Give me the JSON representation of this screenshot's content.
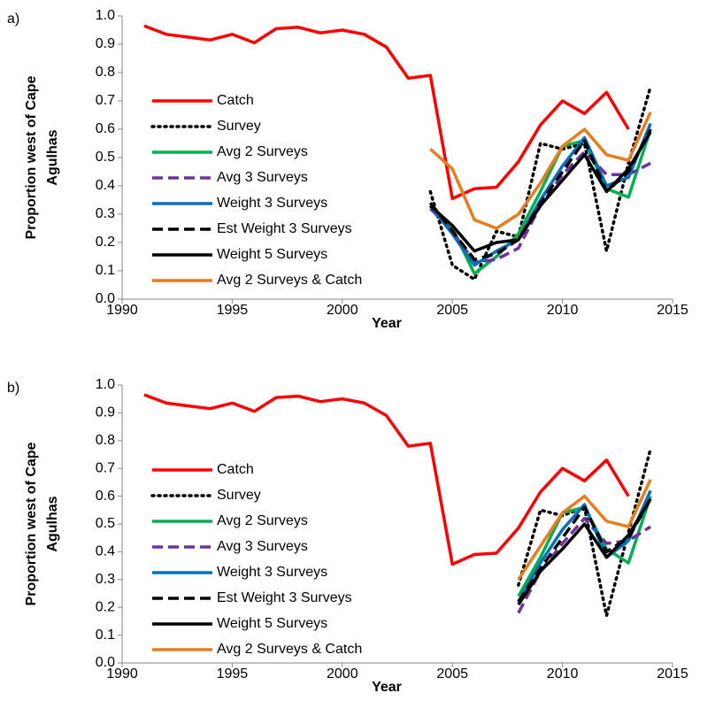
{
  "chart_data": [
    {
      "type": "line",
      "panel_label": "a)",
      "y_label": [
        "Proportion west of Cape",
        "Agulhas"
      ],
      "x_label": "Year",
      "x": [
        1991,
        1992,
        1993,
        1994,
        1995,
        1996,
        1997,
        1998,
        1999,
        2000,
        2001,
        2002,
        2003,
        2004,
        2005,
        2006,
        2007,
        2008,
        2009,
        2010,
        2011,
        2012,
        2013,
        2014
      ],
      "xlim": [
        1990,
        2015
      ],
      "xticks": [
        1990,
        1995,
        2000,
        2005,
        2010,
        2015
      ],
      "ylim": [
        0,
        1
      ],
      "yticks": [
        {
          "value": 0,
          "label": "0.0"
        },
        {
          "value": 0.1,
          "label": "0.1"
        },
        {
          "value": 0.2,
          "label": "0.2"
        },
        {
          "value": 0.3,
          "label": "0.3"
        },
        {
          "value": 0.4,
          "label": "0.4"
        },
        {
          "value": 0.5,
          "label": "0.5"
        },
        {
          "value": 0.6,
          "label": "0.6"
        },
        {
          "value": 0.7,
          "label": "0.7"
        },
        {
          "value": 0.8,
          "label": "0.8"
        },
        {
          "value": 0.9,
          "label": "0.9"
        },
        {
          "value": 1,
          "label": "1.0"
        }
      ],
      "grid": false,
      "legend": "left",
      "series": [
        {
          "name": "Catch",
          "color": "#ff0000",
          "dash": "solid",
          "values": [
            0.965,
            0.935,
            0.925,
            0.915,
            0.935,
            0.905,
            0.955,
            0.96,
            0.94,
            0.95,
            0.935,
            0.89,
            0.78,
            0.79,
            0.355,
            0.39,
            0.395,
            0.485,
            0.615,
            0.7,
            0.655,
            0.73,
            0.6,
            null
          ]
        },
        {
          "name": "Survey",
          "color": "#000000",
          "dash": "dotted",
          "values": [
            null,
            null,
            null,
            null,
            null,
            null,
            null,
            null,
            null,
            null,
            null,
            null,
            null,
            0.38,
            0.12,
            0.07,
            0.24,
            0.22,
            0.55,
            0.53,
            0.55,
            0.17,
            0.48,
            0.75
          ]
        },
        {
          "name": "Avg 2 Surveys",
          "color": "#00b050",
          "dash": "solid",
          "values": [
            null,
            null,
            null,
            null,
            null,
            null,
            null,
            null,
            null,
            null,
            null,
            null,
            null,
            0.33,
            0.25,
            0.09,
            0.15,
            0.23,
            0.38,
            0.54,
            0.56,
            0.39,
            0.36,
            0.6
          ]
        },
        {
          "name": "Avg 3 Surveys",
          "color": "#7030a0",
          "dash": "dashed",
          "values": [
            null,
            null,
            null,
            null,
            null,
            null,
            null,
            null,
            null,
            null,
            null,
            null,
            null,
            0.32,
            0.24,
            0.13,
            0.14,
            0.18,
            0.33,
            0.44,
            0.52,
            0.44,
            0.44,
            0.48
          ]
        },
        {
          "name": "Weight 3 Surveys",
          "color": "#0070c0",
          "dash": "solid",
          "values": [
            null,
            null,
            null,
            null,
            null,
            null,
            null,
            null,
            null,
            null,
            null,
            null,
            null,
            0.33,
            0.23,
            0.12,
            0.17,
            0.21,
            0.35,
            0.47,
            0.57,
            0.4,
            0.43,
            0.62
          ]
        },
        {
          "name": "Est Weight 3 Surveys",
          "color": "#000000",
          "dash": "dashed",
          "values": [
            null,
            null,
            null,
            null,
            null,
            null,
            null,
            null,
            null,
            null,
            null,
            null,
            null,
            0.34,
            0.24,
            0.14,
            0.16,
            0.21,
            0.34,
            0.45,
            0.56,
            0.38,
            0.45,
            0.6
          ]
        },
        {
          "name": "Weight 5 Surveys",
          "color": "#000000",
          "dash": "solid",
          "values": [
            null,
            null,
            null,
            null,
            null,
            null,
            null,
            null,
            null,
            null,
            null,
            null,
            null,
            0.33,
            0.26,
            0.17,
            0.2,
            0.21,
            0.33,
            0.42,
            0.51,
            0.38,
            0.46,
            0.59
          ]
        },
        {
          "name": "Avg 2 Surveys & Catch",
          "color": "#e87d1e",
          "dash": "solid",
          "values": [
            null,
            null,
            null,
            null,
            null,
            null,
            null,
            null,
            null,
            null,
            null,
            null,
            null,
            0.53,
            0.46,
            0.28,
            0.25,
            0.3,
            0.41,
            0.54,
            0.6,
            0.51,
            0.49,
            0.66
          ]
        }
      ]
    },
    {
      "type": "line",
      "panel_label": "b)",
      "y_label": [
        "Proportion west of Cape",
        "Agulhas"
      ],
      "x_label": "Year",
      "x": [
        1991,
        1992,
        1993,
        1994,
        1995,
        1996,
        1997,
        1998,
        1999,
        2000,
        2001,
        2002,
        2003,
        2004,
        2005,
        2006,
        2007,
        2008,
        2009,
        2010,
        2011,
        2012,
        2013,
        2014
      ],
      "xlim": [
        1990,
        2015
      ],
      "xticks": [
        1990,
        1995,
        2000,
        2005,
        2010,
        2015
      ],
      "ylim": [
        0,
        1
      ],
      "yticks": [
        {
          "value": 0,
          "label": "0.0"
        },
        {
          "value": 0.1,
          "label": "0.1"
        },
        {
          "value": 0.2,
          "label": "0.2"
        },
        {
          "value": 0.3,
          "label": "0.3"
        },
        {
          "value": 0.4,
          "label": "0.4"
        },
        {
          "value": 0.5,
          "label": "0.5"
        },
        {
          "value": 0.6,
          "label": "0.6"
        },
        {
          "value": 0.7,
          "label": "0.7"
        },
        {
          "value": 0.8,
          "label": "0.8"
        },
        {
          "value": 0.9,
          "label": "0.9"
        },
        {
          "value": 1,
          "label": "1.0"
        }
      ],
      "grid": false,
      "legend": "left",
      "series": [
        {
          "name": "Catch",
          "color": "#ff0000",
          "dash": "solid",
          "values": [
            0.965,
            0.935,
            0.925,
            0.915,
            0.935,
            0.905,
            0.955,
            0.96,
            0.94,
            0.95,
            0.935,
            0.89,
            0.78,
            0.79,
            0.355,
            0.39,
            0.395,
            0.485,
            0.615,
            0.7,
            0.655,
            0.73,
            0.6,
            null
          ]
        },
        {
          "name": "Survey",
          "color": "#000000",
          "dash": "dotted",
          "values": [
            null,
            null,
            null,
            null,
            null,
            null,
            null,
            null,
            null,
            null,
            null,
            null,
            null,
            null,
            null,
            null,
            null,
            0.28,
            0.55,
            0.53,
            0.56,
            0.17,
            0.47,
            0.77
          ]
        },
        {
          "name": "Avg 2 Surveys",
          "color": "#00b050",
          "dash": "solid",
          "values": [
            null,
            null,
            null,
            null,
            null,
            null,
            null,
            null,
            null,
            null,
            null,
            null,
            null,
            null,
            null,
            null,
            null,
            0.24,
            0.38,
            0.54,
            0.56,
            0.41,
            0.36,
            0.6
          ]
        },
        {
          "name": "Avg 3 Surveys",
          "color": "#7030a0",
          "dash": "dashed",
          "values": [
            null,
            null,
            null,
            null,
            null,
            null,
            null,
            null,
            null,
            null,
            null,
            null,
            null,
            null,
            null,
            null,
            null,
            0.18,
            0.33,
            0.43,
            0.52,
            0.43,
            0.44,
            0.49
          ]
        },
        {
          "name": "Weight 3 Surveys",
          "color": "#0070c0",
          "dash": "solid",
          "values": [
            null,
            null,
            null,
            null,
            null,
            null,
            null,
            null,
            null,
            null,
            null,
            null,
            null,
            null,
            null,
            null,
            null,
            0.22,
            0.36,
            0.48,
            0.57,
            0.38,
            0.44,
            0.62
          ]
        },
        {
          "name": "Est Weight 3 Surveys",
          "color": "#000000",
          "dash": "dashed",
          "values": [
            null,
            null,
            null,
            null,
            null,
            null,
            null,
            null,
            null,
            null,
            null,
            null,
            null,
            null,
            null,
            null,
            null,
            0.22,
            0.34,
            0.45,
            0.56,
            0.4,
            0.45,
            0.59
          ]
        },
        {
          "name": "Weight 5 Surveys",
          "color": "#000000",
          "dash": "solid",
          "values": [
            null,
            null,
            null,
            null,
            null,
            null,
            null,
            null,
            null,
            null,
            null,
            null,
            null,
            null,
            null,
            null,
            null,
            0.21,
            0.33,
            0.41,
            0.5,
            0.38,
            0.46,
            0.59
          ]
        },
        {
          "name": "Avg 2 Surveys & Catch",
          "color": "#e87d1e",
          "dash": "solid",
          "values": [
            null,
            null,
            null,
            null,
            null,
            null,
            null,
            null,
            null,
            null,
            null,
            null,
            null,
            null,
            null,
            null,
            null,
            0.3,
            0.42,
            0.54,
            0.6,
            0.51,
            0.49,
            0.66
          ]
        }
      ]
    }
  ]
}
